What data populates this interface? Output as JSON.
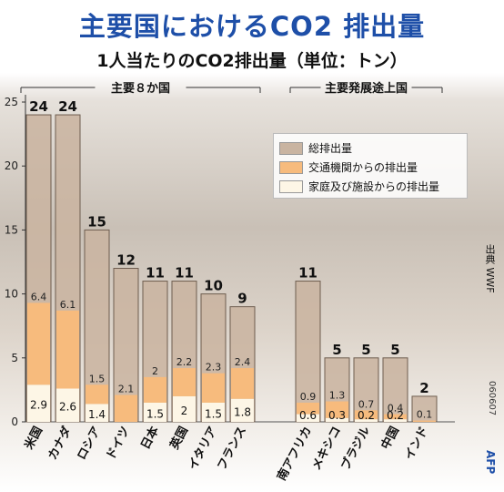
{
  "page": {
    "title": "主要国におけるCO2 排出量",
    "source": "出典 WWF",
    "code": "060607",
    "credit": "AFP"
  },
  "chart_data": {
    "type": "bar",
    "title": "1人当たりのCO2排出量（単位：トン）",
    "ylim": [
      0,
      25
    ],
    "yticks": [
      0,
      5,
      10,
      15,
      20,
      25
    ],
    "grid": false,
    "legend_position": "top-right",
    "groups": [
      {
        "name": "主要８か国",
        "start": 0,
        "end": 7
      },
      {
        "name": "主要発展途上国",
        "start": 8,
        "end": 12
      }
    ],
    "categories": [
      "米国",
      "カナダ",
      "ロシア",
      "ドイツ",
      "日本",
      "英国",
      "イタリア",
      "フランス",
      "南アフリカ",
      "メキシコ",
      "ブラジル",
      "中国",
      "インド"
    ],
    "series": [
      {
        "name": "総排出量",
        "color": "#c9b4a1",
        "values": [
          24,
          24,
          15,
          12,
          11,
          11,
          10,
          9,
          11,
          5,
          5,
          5,
          2
        ]
      },
      {
        "name": "交通機関からの排出量",
        "color": "#f7bb7d",
        "values": [
          6.4,
          6.1,
          1.5,
          2.1,
          2,
          2.2,
          2.3,
          2.4,
          0.9,
          1.3,
          0.7,
          0.4,
          0.1
        ]
      },
      {
        "name": "家庭及び施設からの排出量",
        "color": "#fdf6e6",
        "values": [
          2.9,
          2.6,
          1.4,
          null,
          1.5,
          2,
          1.5,
          1.8,
          0.6,
          0.3,
          0.2,
          0.2,
          null
        ]
      }
    ]
  }
}
